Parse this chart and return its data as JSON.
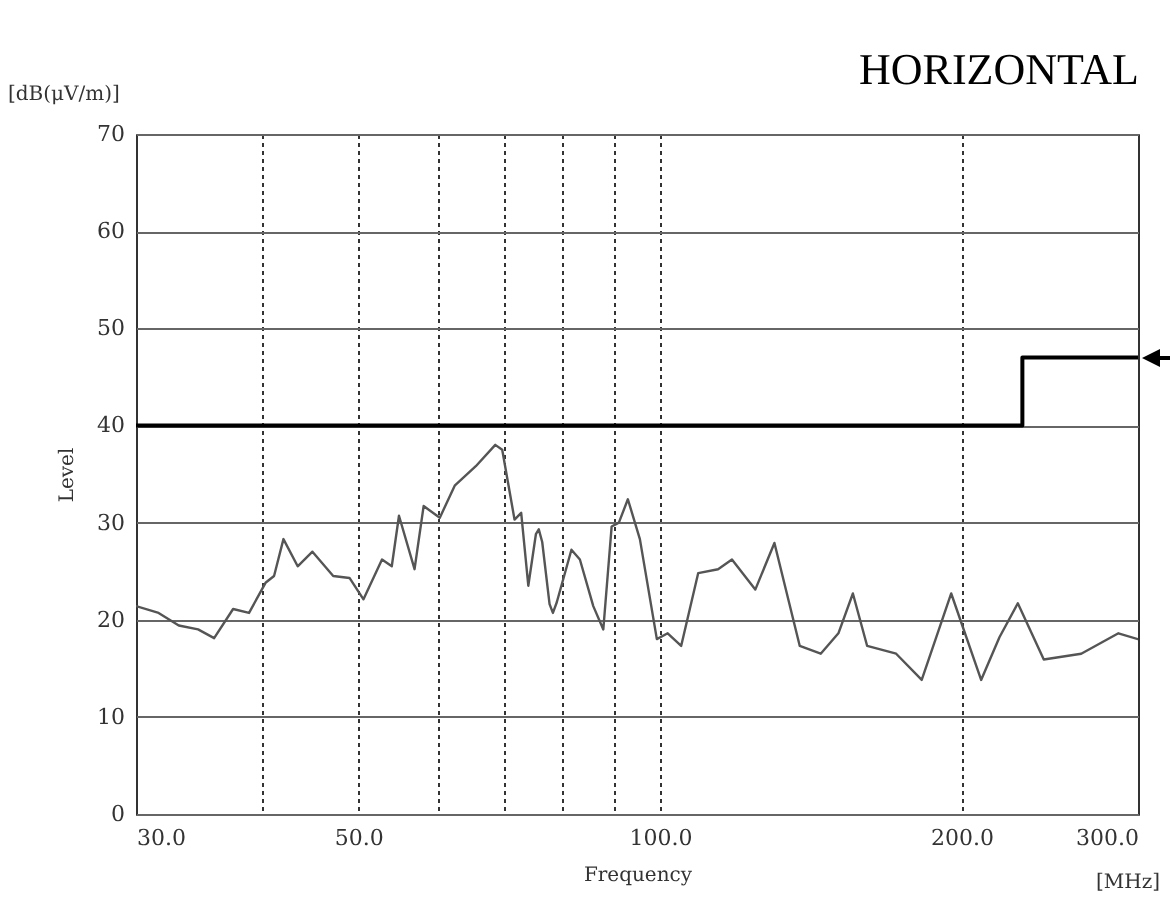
{
  "chart_data": {
    "type": "line",
    "title": "HORIZONTAL",
    "xlabel": "Frequency",
    "ylabel": "Level",
    "annotations": [
      "[dB(μV/m)]",
      "[MHz]"
    ],
    "log": "x",
    "grid": true,
    "xlim": [
      30,
      300
    ],
    "ylim": [
      0,
      70
    ],
    "xticks": [
      {
        "value": 30,
        "label": "30.0"
      },
      {
        "value": 40,
        "label": null
      },
      {
        "value": 50,
        "label": "50.0"
      },
      {
        "value": 60,
        "label": null
      },
      {
        "value": 70,
        "label": null
      },
      {
        "value": 80,
        "label": null
      },
      {
        "value": 90,
        "label": null
      },
      {
        "value": 100,
        "label": "100.0"
      },
      {
        "value": 200,
        "label": "200.0"
      },
      {
        "value": 300,
        "label": "300.0"
      }
    ],
    "yticks": [
      0,
      10,
      20,
      30,
      40,
      50,
      60,
      70
    ],
    "series": [
      {
        "color": "#555555",
        "x": [
          30,
          31.6,
          33.1,
          34.6,
          35.9,
          37.5,
          38.9,
          40.4,
          41.2,
          42.1,
          43.5,
          45,
          47.2,
          49,
          50.6,
          52.8,
          54,
          54.9,
          56.9,
          58.1,
          60.3,
          62.4,
          65.5,
          68.5,
          69.6,
          71.6,
          72.7,
          73.9,
          75.2,
          75.7,
          76.3,
          77.6,
          78.2,
          78.9,
          81.6,
          83.2,
          85.8,
          87.8,
          89.5,
          91,
          92.9,
          95.5,
          99.3,
          101.8,
          105,
          109.2,
          114.3,
          118,
          124.5,
          130.1,
          137.9,
          144.7,
          150.7,
          155.8,
          161,
          172.1,
          182.5,
          195.3,
          209.2,
          218.2,
          227.6,
          241.6,
          263.3,
          286.8,
          300
        ],
        "values": [
          21.4,
          20.7,
          19.4,
          19,
          18.1,
          21.1,
          20.7,
          23.8,
          24.5,
          28.3,
          25.5,
          27,
          24.5,
          24.3,
          22.1,
          26.2,
          25.5,
          30.7,
          25.2,
          31.7,
          30.5,
          33.8,
          35.8,
          38,
          37.5,
          30.3,
          31,
          23.5,
          28.8,
          29.3,
          28,
          21.6,
          20.7,
          21.8,
          27.2,
          26.2,
          21.4,
          19,
          29.6,
          30,
          32.4,
          28.3,
          18,
          18.6,
          17.3,
          24.8,
          25.2,
          26.2,
          23.1,
          27.9,
          17.3,
          16.5,
          18.6,
          22.7,
          17.3,
          16.5,
          13.8,
          22.7,
          13.8,
          18.2,
          21.7,
          15.9,
          16.5,
          18.6,
          18
        ]
      },
      {
        "color": "#000000",
        "x": [
          30,
          230,
          230,
          300
        ],
        "values": [
          40,
          40,
          47,
          47
        ]
      }
    ]
  }
}
